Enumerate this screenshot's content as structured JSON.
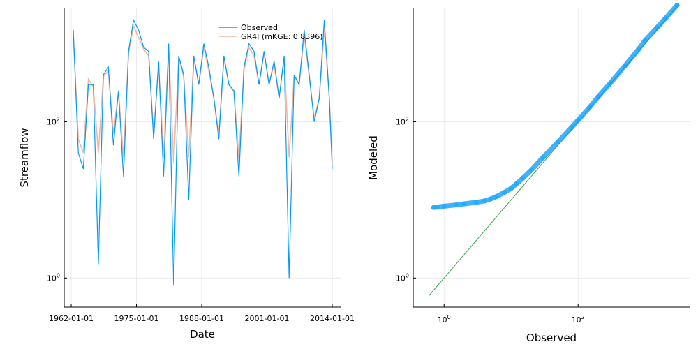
{
  "chart_data": [
    {
      "type": "line",
      "xlabel": "Date",
      "ylabel": "Streamflow",
      "x_ticks": [
        "1962-01-01",
        "1975-01-01",
        "1988-01-01",
        "2001-01-01",
        "2014-01-01"
      ],
      "x_range": [
        "1962-01-01",
        "2014-01-01"
      ],
      "y_scale": "log10",
      "y_ticks": [
        {
          "value": 1,
          "base": "10",
          "exp": "0"
        },
        {
          "value": 100,
          "base": "10",
          "exp": "2"
        }
      ],
      "ylim": [
        0.5,
        2500
      ],
      "grid": true,
      "legend_position": "top-right",
      "series": [
        {
          "name": "Observed",
          "color": "#009af9",
          "points": [
            [
              "1962-06-01",
              1500
            ],
            [
              "1963-06-01",
              40
            ],
            [
              "1964-06-01",
              25
            ],
            [
              "1965-06-01",
              300
            ],
            [
              "1966-06-01",
              300
            ],
            [
              "1967-06-01",
              1.5
            ],
            [
              "1968-06-01",
              400
            ],
            [
              "1969-06-01",
              500
            ],
            [
              "1970-06-01",
              50
            ],
            [
              "1971-06-01",
              250
            ],
            [
              "1972-06-01",
              20
            ],
            [
              "1973-06-01",
              800
            ],
            [
              "1974-06-01",
              2000
            ],
            [
              "1975-06-01",
              1500
            ],
            [
              "1976-06-01",
              900
            ],
            [
              "1977-06-01",
              800
            ],
            [
              "1978-06-01",
              60
            ],
            [
              "1979-06-01",
              600
            ],
            [
              "1980-06-01",
              20
            ],
            [
              "1981-06-01",
              1000
            ],
            [
              "1982-06-01",
              0.8
            ],
            [
              "1983-06-01",
              700
            ],
            [
              "1984-06-01",
              400
            ],
            [
              "1985-06-01",
              10
            ],
            [
              "1986-06-01",
              700
            ],
            [
              "1987-06-01",
              300
            ],
            [
              "1988-06-01",
              1000
            ],
            [
              "1989-06-01",
              500
            ],
            [
              "1990-06-01",
              200
            ],
            [
              "1991-06-01",
              60
            ],
            [
              "1992-06-01",
              700
            ],
            [
              "1993-06-01",
              300
            ],
            [
              "1994-06-01",
              250
            ],
            [
              "1995-06-01",
              20
            ],
            [
              "1996-06-01",
              500
            ],
            [
              "1997-06-01",
              1000
            ],
            [
              "1998-06-01",
              800
            ],
            [
              "1999-06-01",
              300
            ],
            [
              "2000-06-01",
              800
            ],
            [
              "2001-06-01",
              300
            ],
            [
              "2002-06-01",
              600
            ],
            [
              "2003-06-01",
              200
            ],
            [
              "2004-06-01",
              700
            ],
            [
              "2005-06-01",
              1.0
            ],
            [
              "2006-06-01",
              400
            ],
            [
              "2007-06-01",
              300
            ],
            [
              "2008-06-01",
              1500
            ],
            [
              "2009-06-01",
              400
            ],
            [
              "2010-06-01",
              100
            ],
            [
              "2011-06-01",
              200
            ],
            [
              "2012-06-01",
              2000
            ],
            [
              "2013-06-01",
              200
            ],
            [
              "2014-01-01",
              25
            ]
          ]
        },
        {
          "name": "GR4J (mKGE: 0.8396)",
          "color": "#e26f46",
          "points": [
            [
              "1962-06-01",
              1300
            ],
            [
              "1963-06-01",
              60
            ],
            [
              "1964-06-01",
              40
            ],
            [
              "1965-06-01",
              350
            ],
            [
              "1966-06-01",
              280
            ],
            [
              "1967-06-01",
              40
            ],
            [
              "1968-06-01",
              380
            ],
            [
              "1969-06-01",
              450
            ],
            [
              "1970-06-01",
              70
            ],
            [
              "1971-06-01",
              240
            ],
            [
              "1972-06-01",
              35
            ],
            [
              "1973-06-01",
              750
            ],
            [
              "1974-06-01",
              1700
            ],
            [
              "1975-06-01",
              1200
            ],
            [
              "1976-06-01",
              850
            ],
            [
              "1977-06-01",
              700
            ],
            [
              "1978-06-01",
              70
            ],
            [
              "1979-06-01",
              550
            ],
            [
              "1980-06-01",
              35
            ],
            [
              "1981-06-01",
              900
            ],
            [
              "1982-06-01",
              30
            ],
            [
              "1983-06-01",
              650
            ],
            [
              "1984-06-01",
              380
            ],
            [
              "1985-06-01",
              35
            ],
            [
              "1986-06-01",
              650
            ],
            [
              "1987-06-01",
              300
            ],
            [
              "1988-06-01",
              900
            ],
            [
              "1989-06-01",
              450
            ],
            [
              "1990-06-01",
              200
            ],
            [
              "1991-06-01",
              70
            ],
            [
              "1992-06-01",
              650
            ],
            [
              "1993-06-01",
              300
            ],
            [
              "1994-06-01",
              240
            ],
            [
              "1995-06-01",
              35
            ],
            [
              "1996-06-01",
              450
            ],
            [
              "1997-06-01",
              900
            ],
            [
              "1998-06-01",
              700
            ],
            [
              "1999-06-01",
              300
            ],
            [
              "2000-06-01",
              750
            ],
            [
              "2001-06-01",
              300
            ],
            [
              "2002-06-01",
              550
            ],
            [
              "2003-06-01",
              200
            ],
            [
              "2004-06-01",
              650
            ],
            [
              "2005-06-01",
              35
            ],
            [
              "2006-06-01",
              380
            ],
            [
              "2007-06-01",
              300
            ],
            [
              "2008-06-01",
              1300
            ],
            [
              "2009-06-01",
              380
            ],
            [
              "2010-06-01",
              110
            ],
            [
              "2011-06-01",
              200
            ],
            [
              "2012-06-01",
              1600
            ],
            [
              "2013-06-01",
              200
            ],
            [
              "2014-01-01",
              30
            ]
          ]
        }
      ]
    },
    {
      "type": "scatter",
      "xlabel": "Observed",
      "ylabel": "Modeled",
      "x_scale": "log10",
      "y_scale": "log10",
      "x_ticks": [
        {
          "value": 1,
          "base": "10",
          "exp": "0"
        },
        {
          "value": 100,
          "base": "10",
          "exp": "2"
        }
      ],
      "y_ticks": [
        {
          "value": 1,
          "base": "10",
          "exp": "0"
        },
        {
          "value": 100,
          "base": "10",
          "exp": "2"
        }
      ],
      "xlim": [
        0.4,
        4000
      ],
      "ylim": [
        0.5,
        2500
      ],
      "grid": true,
      "series": [
        {
          "color": "#009af9",
          "points": [
            [
              0.7,
              8
            ],
            [
              0.8,
              8.1
            ],
            [
              1,
              8.3
            ],
            [
              1.5,
              8.6
            ],
            [
              2,
              8.9
            ],
            [
              3,
              9.3
            ],
            [
              4,
              9.7
            ],
            [
              5,
              10.3
            ],
            [
              6,
              11
            ],
            [
              8,
              12.5
            ],
            [
              10,
              14
            ],
            [
              12,
              16
            ],
            [
              15,
              19
            ],
            [
              20,
              24
            ],
            [
              30,
              35
            ],
            [
              50,
              55
            ],
            [
              80,
              85
            ],
            [
              100,
              105
            ],
            [
              150,
              155
            ],
            [
              200,
              210
            ],
            [
              300,
              310
            ],
            [
              500,
              520
            ],
            [
              800,
              850
            ],
            [
              1000,
              1100
            ],
            [
              1500,
              1600
            ],
            [
              2000,
              2100
            ],
            [
              3000,
              3100
            ]
          ]
        },
        {
          "type": "line",
          "color": "#3da44d",
          "points": [
            [
              0.6,
              0.6
            ],
            [
              3200,
              3200
            ]
          ]
        }
      ]
    }
  ]
}
